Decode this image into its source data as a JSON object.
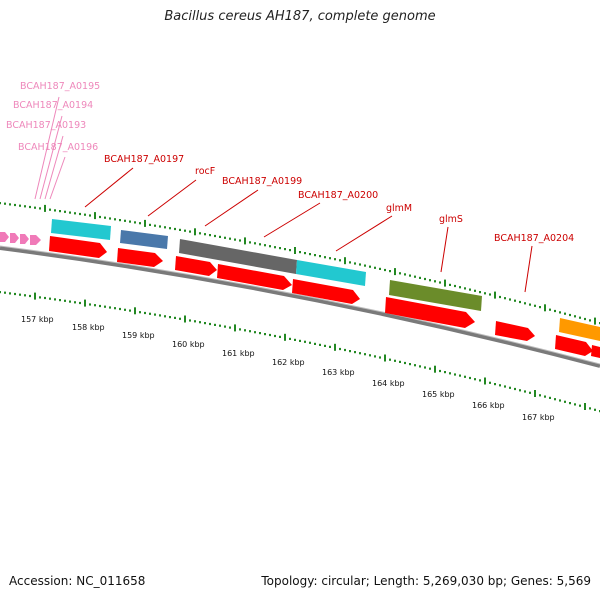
{
  "title": "Bacillus cereus AH187, complete genome",
  "accession": "Accession: NC_011658",
  "summary": "Topology: circular; Length: 5,269,030 bp; Genes: 5,569",
  "colors": {
    "forward_cds": "#ff0000",
    "label_red": "#cc0000",
    "label_pink": "#ee88bb",
    "cyan": "#22c8d0",
    "steelblue": "#4a78aa",
    "gray": "#666666",
    "olive": "#6b8c2a",
    "orange": "#ff9900",
    "ticks": "#228822"
  },
  "gene_labels": [
    {
      "text": "BCAH187_A0195",
      "style": "pink"
    },
    {
      "text": "BCAH187_A0194",
      "style": "pink"
    },
    {
      "text": "BCAH187_A0193",
      "style": "pink"
    },
    {
      "text": "BCAH187_A0196",
      "style": "pink"
    },
    {
      "text": "BCAH187_A0197",
      "style": "red"
    },
    {
      "text": "rocF",
      "style": "red"
    },
    {
      "text": "BCAH187_A0199",
      "style": "red"
    },
    {
      "text": "BCAH187_A0200",
      "style": "red"
    },
    {
      "text": "glmM",
      "style": "red"
    },
    {
      "text": "glmS",
      "style": "red"
    },
    {
      "text": "BCAH187_A0204",
      "style": "red"
    }
  ],
  "scale_labels": [
    "157 kbp",
    "158 kbp",
    "159 kbp",
    "160 kbp",
    "161 kbp",
    "162 kbp",
    "163 kbp",
    "164 kbp",
    "165 kbp",
    "166 kbp",
    "167 kbp"
  ]
}
